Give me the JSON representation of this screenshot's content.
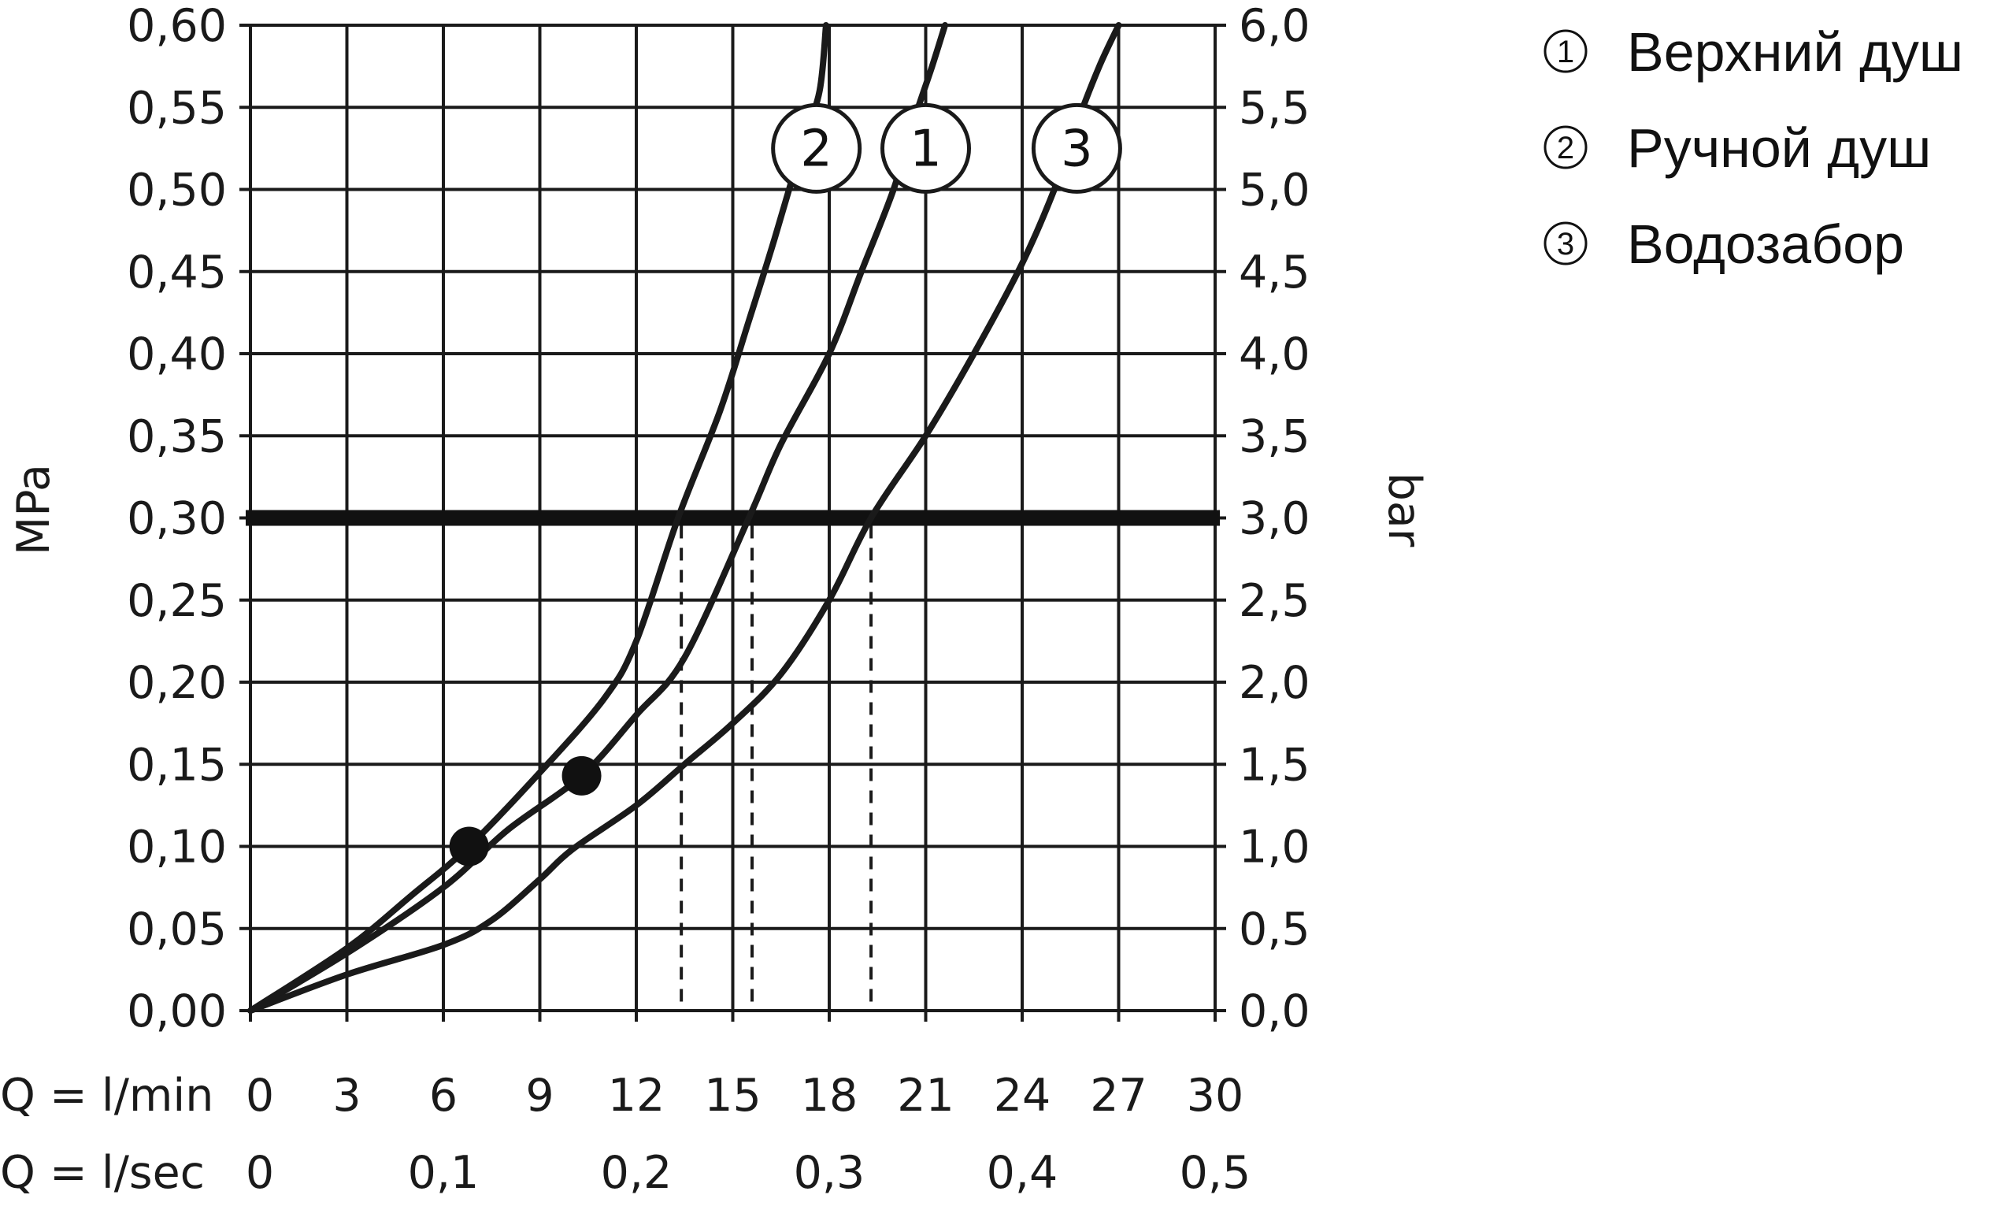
{
  "chart_data": {
    "type": "line",
    "ylabel_left": "MPa",
    "ylabel_right": "bar",
    "xlabel_row1": "Q = l/min",
    "xlabel_row2": "Q = l/sec",
    "xlim": [
      0,
      30
    ],
    "ylim": [
      0,
      0.6
    ],
    "grid": true,
    "x_ticks_lmin": [
      "0",
      "3",
      "6",
      "9",
      "12",
      "15",
      "18",
      "21",
      "24",
      "27",
      "30"
    ],
    "x_ticks_lsec": [
      {
        "label": "0",
        "value": 0
      },
      {
        "label": "0,1",
        "value": 6
      },
      {
        "label": "0,2",
        "value": 12
      },
      {
        "label": "0,3",
        "value": 18
      },
      {
        "label": "0,4",
        "value": 24
      },
      {
        "label": "0,5",
        "value": 30
      }
    ],
    "y_ticks_mpa": [
      "0,00",
      "0,05",
      "0,10",
      "0,15",
      "0,20",
      "0,25",
      "0,30",
      "0,35",
      "0,40",
      "0,45",
      "0,50",
      "0,55",
      "0,60"
    ],
    "y_ticks_bar": [
      "0,0",
      "0,5",
      "1,0",
      "1,5",
      "2,0",
      "2,5",
      "3,0",
      "3,5",
      "4,0",
      "4,5",
      "5,0",
      "5,5",
      "6,0"
    ],
    "reference_line": {
      "y": 0.3
    },
    "series": [
      {
        "name": "1",
        "points": [
          [
            0,
            0
          ],
          [
            3,
            0.035
          ],
          [
            6,
            0.075
          ],
          [
            8,
            0.11
          ],
          [
            10.3,
            0.143
          ],
          [
            12,
            0.18
          ],
          [
            13.5,
            0.215
          ],
          [
            15.5,
            0.3
          ],
          [
            16.5,
            0.345
          ],
          [
            18,
            0.4
          ],
          [
            19,
            0.45
          ],
          [
            20,
            0.5
          ],
          [
            20.6,
            0.54
          ],
          [
            21.2,
            0.575
          ],
          [
            21.6,
            0.6
          ]
        ],
        "marker": {
          "x": 10.3,
          "y": 0.143
        },
        "dashed_x": 15.6
      },
      {
        "name": "2",
        "points": [
          [
            0,
            0
          ],
          [
            3,
            0.038
          ],
          [
            5,
            0.07
          ],
          [
            6.8,
            0.1
          ],
          [
            9,
            0.145
          ],
          [
            11,
            0.19
          ],
          [
            12,
            0.225
          ],
          [
            13.3,
            0.3
          ],
          [
            14.6,
            0.365
          ],
          [
            15.5,
            0.42
          ],
          [
            16.3,
            0.47
          ],
          [
            17.2,
            0.53
          ],
          [
            17.7,
            0.56
          ],
          [
            17.9,
            0.6
          ]
        ],
        "marker": {
          "x": 6.8,
          "y": 0.1
        },
        "dashed_x": 13.4
      },
      {
        "name": "3",
        "points": [
          [
            0,
            0
          ],
          [
            3,
            0.022
          ],
          [
            6,
            0.04
          ],
          [
            7.5,
            0.055
          ],
          [
            9,
            0.08
          ],
          [
            10,
            0.098
          ],
          [
            12,
            0.125
          ],
          [
            13.5,
            0.15
          ],
          [
            15,
            0.175
          ],
          [
            16.5,
            0.205
          ],
          [
            18,
            0.25
          ],
          [
            19.3,
            0.3
          ],
          [
            21,
            0.35
          ],
          [
            22.5,
            0.4
          ],
          [
            24,
            0.455
          ],
          [
            25,
            0.5
          ],
          [
            25.7,
            0.54
          ],
          [
            26.4,
            0.575
          ],
          [
            27,
            0.6
          ]
        ],
        "dashed_x": 19.3
      }
    ],
    "badges": [
      {
        "label": "2",
        "x": 17.6,
        "y": 0.525
      },
      {
        "label": "1",
        "x": 21.0,
        "y": 0.525
      },
      {
        "label": "3",
        "x": 25.7,
        "y": 0.525
      }
    ]
  },
  "legend": [
    {
      "num": "1",
      "label": "Верхний душ"
    },
    {
      "num": "2",
      "label": "Ручной душ"
    },
    {
      "num": "3",
      "label": "Водозабор"
    }
  ]
}
